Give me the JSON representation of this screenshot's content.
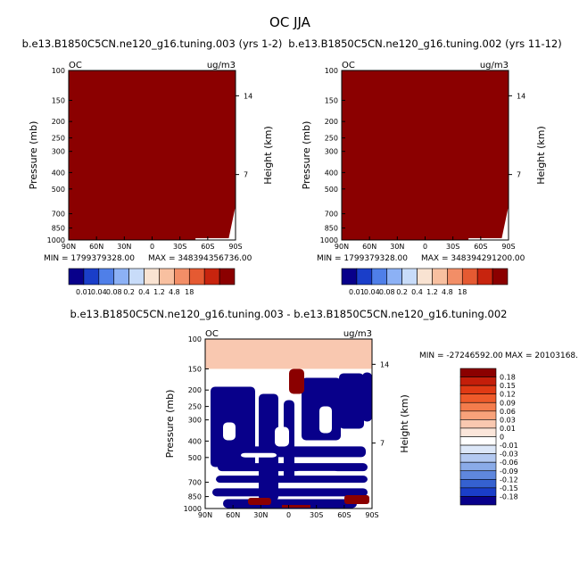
{
  "figure": {
    "title": "OC JJA"
  },
  "chart_data": [
    {
      "type": "heatmap",
      "title": "b.e13.B1850C5CN.ne120_g16.tuning.003 (yrs 1-2)",
      "variable": "OC",
      "units": "ug/m3",
      "xlabel": "",
      "ylabel": "Pressure (mb)",
      "ylabel_right": "Height (km)",
      "x_ticks": [
        "90N",
        "60N",
        "30N",
        "0",
        "30S",
        "60S",
        "90S"
      ],
      "y_ticks": [
        "100",
        "150",
        "200",
        "250",
        "300",
        "400",
        "500",
        "700",
        "850",
        "1000"
      ],
      "y_ticks_right": [
        "14",
        "7"
      ],
      "ylim": [
        100,
        1000
      ],
      "xlim": [
        "90N",
        "90S"
      ],
      "yscale": "log",
      "fill_color": "#8b0000",
      "min_label": "MIN = 1799379328.00",
      "max_label": "MAX = 348394356736.00",
      "colorbar": {
        "labels": [
          "0.01",
          "0.04",
          "0.08",
          "0.2",
          "0.4",
          "1.2",
          "4.8",
          "18"
        ],
        "colors": [
          "#08008a",
          "#1a3ec9",
          "#4f7fe8",
          "#8cb1f5",
          "#c8dcf9",
          "#f9e3d2",
          "#f8c0a0",
          "#f28e67",
          "#e55a32",
          "#c8240e",
          "#8b0000"
        ]
      }
    },
    {
      "type": "heatmap",
      "title": "b.e13.B1850C5CN.ne120_g16.tuning.002 (yrs 11-12)",
      "variable": "OC",
      "units": "ug/m3",
      "xlabel": "",
      "ylabel": "Pressure (mb)",
      "ylabel_right": "Height (km)",
      "x_ticks": [
        "90N",
        "60N",
        "30N",
        "0",
        "30S",
        "60S",
        "90S"
      ],
      "y_ticks": [
        "100",
        "150",
        "200",
        "250",
        "300",
        "400",
        "500",
        "700",
        "850",
        "1000"
      ],
      "y_ticks_right": [
        "14",
        "7"
      ],
      "ylim": [
        100,
        1000
      ],
      "xlim": [
        "90N",
        "90S"
      ],
      "yscale": "log",
      "fill_color": "#8b0000",
      "min_label": "MIN = 1799379328.00",
      "max_label": "MAX = 348394291200.00",
      "colorbar": {
        "labels": [
          "0.01",
          "0.04",
          "0.08",
          "0.2",
          "0.4",
          "1.2",
          "4.8",
          "18"
        ],
        "colors": [
          "#08008a",
          "#1a3ec9",
          "#4f7fe8",
          "#8cb1f5",
          "#c8dcf9",
          "#f9e3d2",
          "#f8c0a0",
          "#f28e67",
          "#e55a32",
          "#c8240e",
          "#8b0000"
        ]
      }
    },
    {
      "type": "heatmap",
      "title": "b.e13.B1850C5CN.ne120_g16.tuning.003 - b.e13.B1850C5CN.ne120_g16.tuning.002",
      "variable": "OC",
      "units": "ug/m3",
      "xlabel": "",
      "ylabel": "Pressure (mb)",
      "ylabel_right": "Height (km)",
      "x_ticks": [
        "90N",
        "60N",
        "30N",
        "0",
        "30S",
        "60S",
        "90S"
      ],
      "y_ticks": [
        "100",
        "150",
        "200",
        "250",
        "300",
        "400",
        "500",
        "700",
        "850",
        "1000"
      ],
      "y_ticks_right": [
        "14",
        "7"
      ],
      "ylim": [
        100,
        1000
      ],
      "xlim": [
        "90N",
        "90S"
      ],
      "yscale": "log",
      "min_label": "MIN = -27246592.00",
      "max_label": "MAX = 20103168.",
      "band_100_150_color": "#f9c8b0",
      "colorbar": {
        "labels": [
          "0.18",
          "0.15",
          "0.12",
          "0.09",
          "0.06",
          "0.03",
          "0.01",
          "0",
          "-0.01",
          "-0.03",
          "-0.06",
          "-0.09",
          "-0.12",
          "-0.15",
          "-0.18"
        ],
        "colors": [
          "#8b0000",
          "#c41e0a",
          "#e03a14",
          "#ee5a2a",
          "#f47c4c",
          "#f8a27a",
          "#f9c8b0",
          "#fbe6da",
          "#ffffff",
          "#dce7f8",
          "#b3c9f1",
          "#8aabe8",
          "#5f87dd",
          "#3561d0",
          "#1a3ec9",
          "#08008a"
        ]
      }
    }
  ]
}
